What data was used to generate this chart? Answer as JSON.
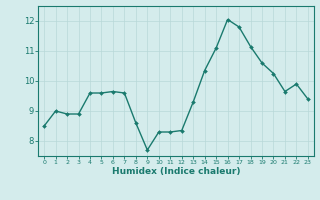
{
  "x": [
    0,
    1,
    2,
    3,
    4,
    5,
    6,
    7,
    8,
    9,
    10,
    11,
    12,
    13,
    14,
    15,
    16,
    17,
    18,
    19,
    20,
    21,
    22,
    23
  ],
  "y": [
    8.5,
    9.0,
    8.9,
    8.9,
    9.6,
    9.6,
    9.65,
    9.6,
    8.6,
    7.7,
    8.3,
    8.3,
    8.35,
    9.3,
    10.35,
    11.1,
    12.05,
    11.8,
    11.15,
    10.6,
    10.25,
    9.65,
    9.9,
    9.4
  ],
  "line_color": "#1a7a6e",
  "marker": "D",
  "marker_size": 2.0,
  "line_width": 1.0,
  "xlabel": "Humidex (Indice chaleur)",
  "xlabel_fontsize": 6.5,
  "ylim": [
    7.5,
    12.5
  ],
  "xlim": [
    -0.5,
    23.5
  ],
  "yticks": [
    8,
    9,
    10,
    11,
    12
  ],
  "xticks": [
    0,
    1,
    2,
    3,
    4,
    5,
    6,
    7,
    8,
    9,
    10,
    11,
    12,
    13,
    14,
    15,
    16,
    17,
    18,
    19,
    20,
    21,
    22,
    23
  ],
  "xtick_fontsize": 4.5,
  "ytick_fontsize": 6.0,
  "bg_color": "#d4ecec",
  "grid_color": "#b8d8d8",
  "spine_color": "#1a7a6e"
}
